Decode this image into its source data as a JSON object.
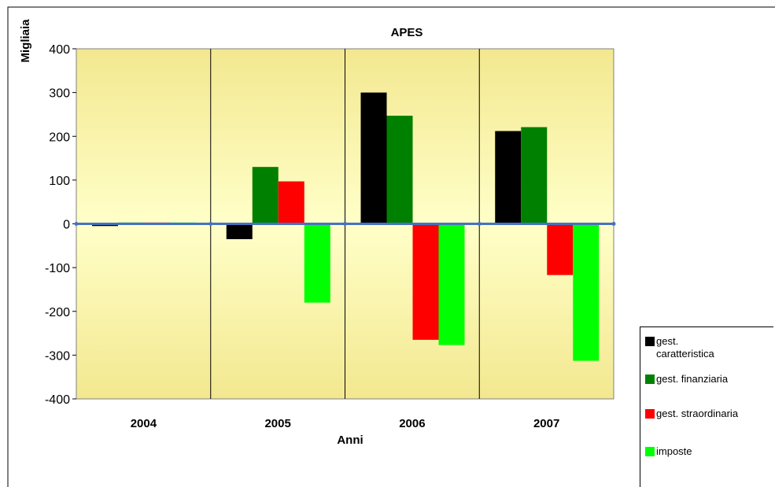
{
  "chart_data": {
    "type": "bar",
    "title": "APES",
    "y_label": "Migliaia",
    "x_label": "Anni",
    "categories": [
      "2004",
      "2005",
      "2006",
      "2007"
    ],
    "series": [
      {
        "name": "gest. caratteristica",
        "color": "#000000",
        "values": [
          -5,
          -35,
          300,
          212
        ]
      },
      {
        "name": "gest. finanziaria",
        "color": "#008000",
        "values": [
          3,
          130,
          247,
          221
        ]
      },
      {
        "name": "gest. straordinaria",
        "color": "#ff0000",
        "values": [
          3,
          97,
          -265,
          -117
        ]
      },
      {
        "name": "imposte",
        "color": "#00ff00",
        "values": [
          3,
          -180,
          -277,
          -313
        ]
      }
    ],
    "ylim": [
      -400,
      400
    ],
    "yticks": [
      -400,
      -300,
      -200,
      -100,
      0,
      100,
      200,
      300,
      400
    ],
    "grid": false,
    "zero_line_color": "#4472c4"
  }
}
